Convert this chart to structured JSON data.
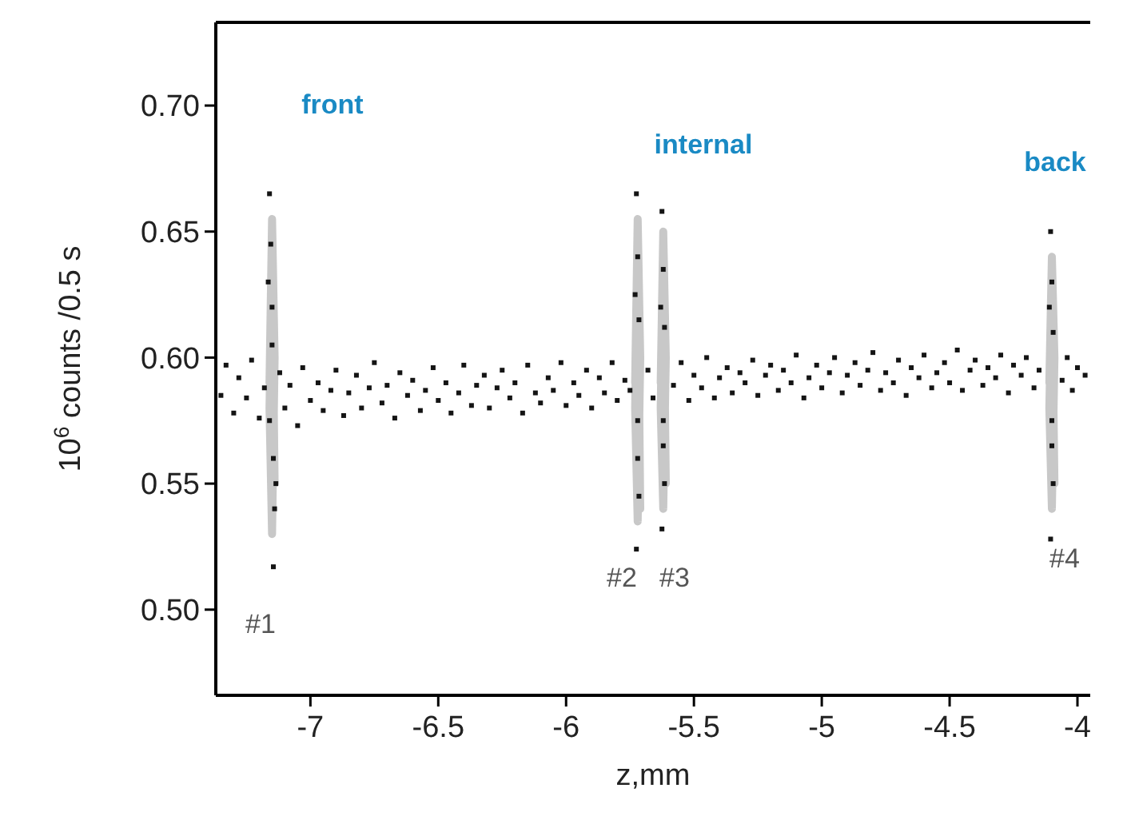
{
  "chart_data": {
    "type": "scatter",
    "xlabel": "z,mm",
    "ylabel": "10$^{6}$ counts /0.5 s",
    "xlim": [
      -7.37,
      -3.95
    ],
    "ylim": [
      0.466,
      0.733
    ],
    "xticks": [
      -7,
      -6.5,
      -6,
      -5.5,
      -5,
      -4.5,
      -4
    ],
    "yticks": [
      {
        "value": 0.5,
        "label": "0.50"
      },
      {
        "value": 0.55,
        "label": "0.55"
      },
      {
        "value": 0.6,
        "label": "0.60"
      },
      {
        "value": 0.65,
        "label": "0.65"
      },
      {
        "value": 0.7,
        "label": "0.70"
      }
    ],
    "grid": false,
    "series": [
      {
        "type": "line",
        "color": "#c8c8c8",
        "x": [
          -7.16,
          -7.15,
          -7.14,
          -7.15,
          -7.16,
          -7.15,
          -7.14,
          -7.15,
          -6.5,
          -5.73,
          -5.72,
          -5.71,
          -5.72,
          -5.73,
          -5.72,
          -5.71,
          -5.72,
          -5.67,
          -5.63,
          -5.62,
          -5.61,
          -5.62,
          -5.63,
          -5.62,
          -5.61,
          -5.62,
          -5.0,
          -4.11,
          -4.1,
          -4.09,
          -4.1,
          -4.11,
          -4.1,
          -4.09,
          -4.1
        ],
        "values": [
          0.59,
          0.655,
          0.6,
          0.53,
          0.58,
          0.64,
          0.55,
          0.59,
          null,
          0.59,
          0.655,
          0.6,
          0.535,
          0.58,
          0.645,
          0.54,
          0.59,
          null,
          0.59,
          0.65,
          0.6,
          0.54,
          0.58,
          0.64,
          0.55,
          0.59,
          null,
          0.59,
          0.64,
          0.6,
          0.54,
          0.58,
          0.63,
          0.55,
          0.59
        ]
      },
      {
        "color": "#141414",
        "marker": "square",
        "x": [
          -7.35,
          -7.33,
          -7.3,
          -7.28,
          -7.25,
          -7.23,
          -7.2,
          -7.18,
          -7.12,
          -7.1,
          -7.08,
          -7.05,
          -7.03,
          -7.0,
          -6.97,
          -6.95,
          -6.92,
          -6.9,
          -6.87,
          -6.85,
          -6.82,
          -6.8,
          -6.77,
          -6.75,
          -6.72,
          -6.7,
          -6.67,
          -6.65,
          -6.62,
          -6.6,
          -6.57,
          -6.55,
          -6.52,
          -6.5,
          -6.47,
          -6.45,
          -6.42,
          -6.4,
          -6.37,
          -6.35,
          -6.32,
          -6.3,
          -6.27,
          -6.25,
          -6.22,
          -6.2,
          -6.17,
          -6.15,
          -6.12,
          -6.1,
          -6.07,
          -6.05,
          -6.02,
          -6.0,
          -5.97,
          -5.95,
          -5.92,
          -5.9,
          -5.87,
          -5.85,
          -5.82,
          -5.8,
          -5.77,
          -5.75,
          -5.68,
          -5.66,
          -5.58,
          -5.55,
          -5.52,
          -5.5,
          -5.47,
          -5.45,
          -5.42,
          -5.4,
          -5.37,
          -5.35,
          -5.32,
          -5.3,
          -5.27,
          -5.25,
          -5.22,
          -5.2,
          -5.17,
          -5.15,
          -5.12,
          -5.1,
          -5.07,
          -5.05,
          -5.02,
          -5.0,
          -4.97,
          -4.95,
          -4.92,
          -4.9,
          -4.87,
          -4.85,
          -4.82,
          -4.8,
          -4.77,
          -4.75,
          -4.72,
          -4.7,
          -4.67,
          -4.65,
          -4.62,
          -4.6,
          -4.57,
          -4.55,
          -4.52,
          -4.5,
          -4.47,
          -4.45,
          -4.42,
          -4.4,
          -4.37,
          -4.35,
          -4.32,
          -4.3,
          -4.27,
          -4.25,
          -4.22,
          -4.2,
          -4.17,
          -4.15,
          -4.06,
          -4.04,
          -4.02,
          -4.0,
          -3.97,
          -7.16,
          -7.155,
          -7.15,
          -7.145,
          -7.14,
          -7.145,
          -7.165,
          -7.135,
          -7.15,
          -7.16,
          -5.725,
          -5.72,
          -5.715,
          -5.72,
          -5.725,
          -5.715,
          -5.73,
          -5.72,
          -5.625,
          -5.62,
          -5.615,
          -5.62,
          -5.625,
          -5.615,
          -5.63,
          -5.62,
          -4.105,
          -4.1,
          -4.095,
          -4.1,
          -4.105,
          -4.095,
          -4.11,
          -4.1
        ],
        "values": [
          0.585,
          0.597,
          0.578,
          0.592,
          0.584,
          0.599,
          0.576,
          0.588,
          0.594,
          0.58,
          0.589,
          0.573,
          0.596,
          0.583,
          0.59,
          0.579,
          0.587,
          0.595,
          0.577,
          0.586,
          0.593,
          0.58,
          0.588,
          0.598,
          0.582,
          0.589,
          0.576,
          0.594,
          0.585,
          0.591,
          0.579,
          0.587,
          0.596,
          0.583,
          0.59,
          0.578,
          0.586,
          0.597,
          0.581,
          0.589,
          0.593,
          0.58,
          0.588,
          0.595,
          0.584,
          0.59,
          0.578,
          0.597,
          0.586,
          0.582,
          0.592,
          0.587,
          0.598,
          0.581,
          0.59,
          0.585,
          0.595,
          0.58,
          0.592,
          0.586,
          0.598,
          0.583,
          0.591,
          0.587,
          0.595,
          0.584,
          0.589,
          0.598,
          0.583,
          0.593,
          0.588,
          0.6,
          0.584,
          0.592,
          0.596,
          0.586,
          0.594,
          0.59,
          0.599,
          0.585,
          0.593,
          0.597,
          0.587,
          0.595,
          0.59,
          0.601,
          0.584,
          0.592,
          0.597,
          0.588,
          0.594,
          0.6,
          0.586,
          0.593,
          0.598,
          0.589,
          0.595,
          0.602,
          0.587,
          0.594,
          0.59,
          0.599,
          0.585,
          0.596,
          0.592,
          0.601,
          0.588,
          0.594,
          0.598,
          0.59,
          0.603,
          0.587,
          0.595,
          0.599,
          0.589,
          0.596,
          0.592,
          0.601,
          0.586,
          0.597,
          0.593,
          0.6,
          0.588,
          0.595,
          0.591,
          0.6,
          0.587,
          0.596,
          0.593,
          0.665,
          0.645,
          0.62,
          0.56,
          0.54,
          0.517,
          0.63,
          0.55,
          0.605,
          0.575,
          0.665,
          0.64,
          0.615,
          0.56,
          0.524,
          0.545,
          0.625,
          0.575,
          0.658,
          0.635,
          0.612,
          0.565,
          0.532,
          0.55,
          0.62,
          0.575,
          0.65,
          0.63,
          0.61,
          0.565,
          0.528,
          0.55,
          0.62,
          0.575
        ]
      }
    ],
    "annotations": [
      "front",
      "internal",
      "back",
      "#1",
      "#2",
      "#3",
      "#4"
    ]
  }
}
